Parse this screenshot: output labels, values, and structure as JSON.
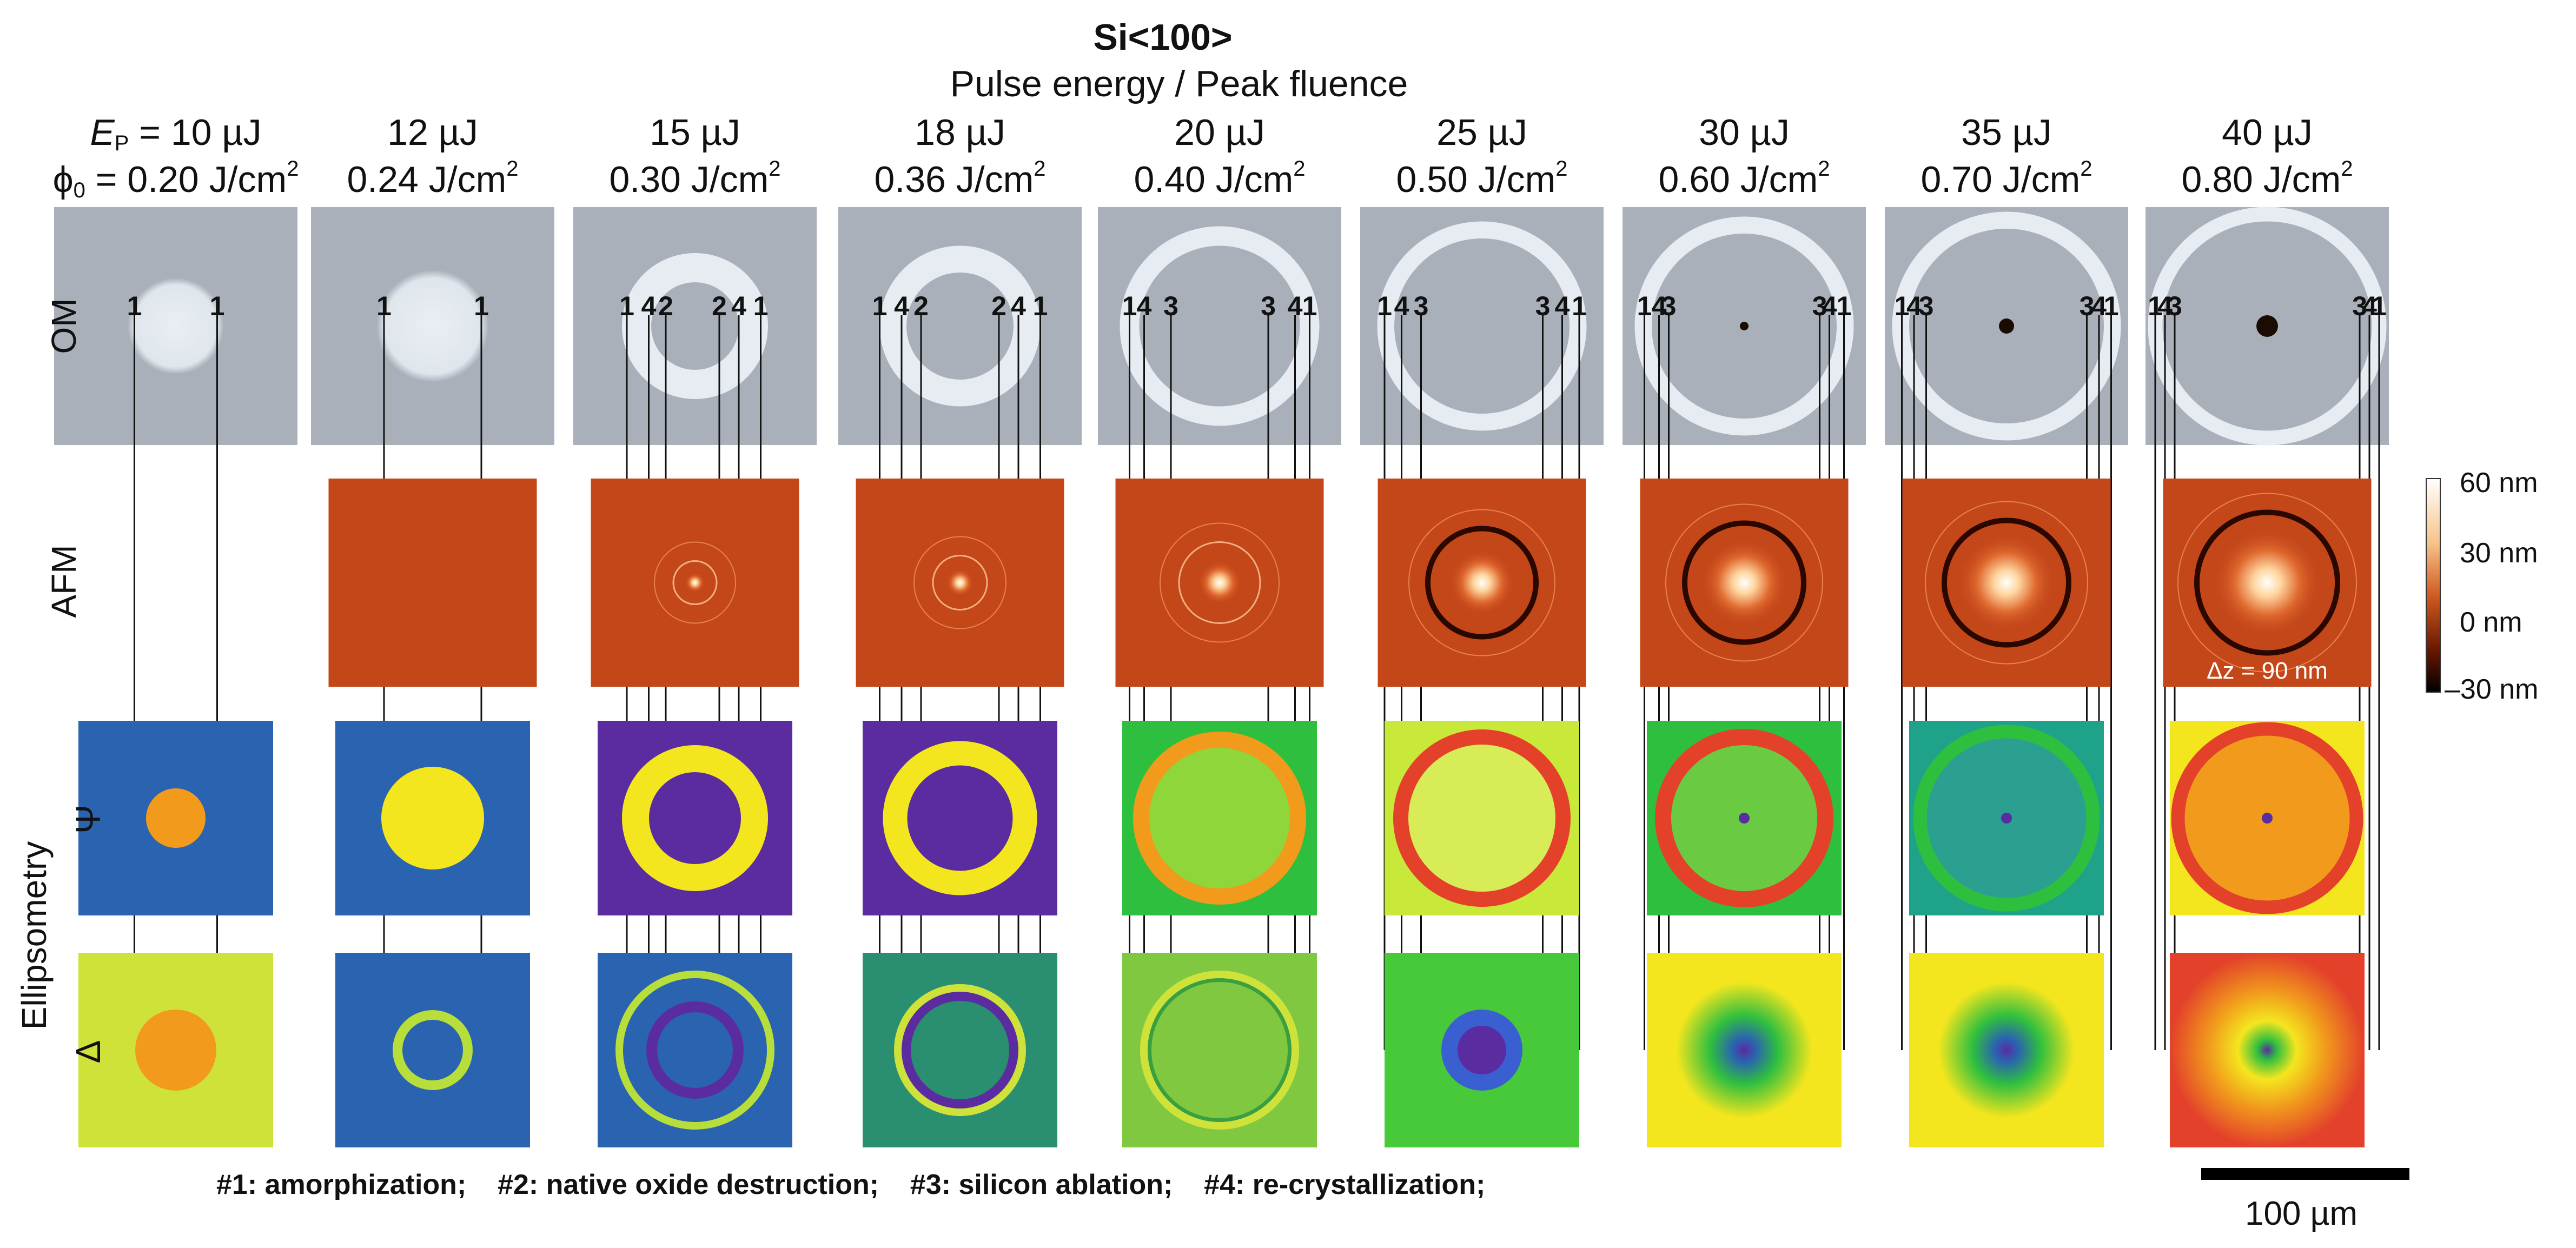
{
  "title": "Si<100>",
  "subtitle": "Pulse energy / Peak fluence",
  "columns": [
    {
      "energy_prefix": "E",
      "energy_sub": "P",
      "energy": "= 10 µJ",
      "fluence_prefix": "ϕ",
      "fluence_sub": "0",
      "fluence": "= 0.20 J/cm",
      "om_labels": [
        "1",
        "1"
      ],
      "has_afm": false
    },
    {
      "energy": "12 µJ",
      "fluence": "0.24 J/cm",
      "om_labels": [
        "1",
        "1"
      ],
      "has_afm": true
    },
    {
      "energy": "15 µJ",
      "fluence": "0.30 J/cm",
      "om_labels": [
        "1",
        "4",
        "2",
        "2",
        "4",
        "1"
      ],
      "has_afm": true
    },
    {
      "energy": "18 µJ",
      "fluence": "0.36 J/cm",
      "om_labels": [
        "1",
        "4",
        "2",
        "2",
        "4",
        "1"
      ],
      "has_afm": true
    },
    {
      "energy": "20 µJ",
      "fluence": "0.40 J/cm",
      "om_labels": [
        "1",
        "4",
        "3",
        "3",
        "4",
        "1"
      ],
      "has_afm": true
    },
    {
      "energy": "25 µJ",
      "fluence": "0.50 J/cm",
      "om_labels": [
        "1",
        "4",
        "3",
        "3",
        "4",
        "1"
      ],
      "has_afm": true
    },
    {
      "energy": "30 µJ",
      "fluence": "0.60 J/cm",
      "om_labels": [
        "1",
        "4",
        "3",
        "3",
        "4",
        "1"
      ],
      "has_afm": true
    },
    {
      "energy": "35 µJ",
      "fluence": "0.70 J/cm",
      "om_labels": [
        "1",
        "4",
        "3",
        "3",
        "4",
        "1"
      ],
      "has_afm": true
    },
    {
      "energy": "40 µJ",
      "fluence": "0.80 J/cm",
      "om_labels": [
        "1",
        "4",
        "3",
        "3",
        "4",
        "1"
      ],
      "has_afm": true
    }
  ],
  "fluence_exponent": "2",
  "row_labels": {
    "om": "OM",
    "afm": "AFM",
    "ellipsometry": "Ellipsometry",
    "psi": "Ψ",
    "delta": "Δ"
  },
  "colorbar": {
    "labels": [
      "60 nm",
      "30 nm",
      "0 nm",
      "–30 nm"
    ],
    "delta_z": "Δz = 90 nm"
  },
  "legend": "#1: amorphization;    #2: native oxide destruction;    #3: silicon ablation;    #4: re-crystallization;",
  "scale_bar": "100 µm",
  "colors": {
    "om_bg": "#aab0ba",
    "om_ring": "#e6ecf2",
    "afm_bg": "#c4471a",
    "afm_bright": "#fff2cf",
    "afm_dark": "#2a0800",
    "viridis_purple": "#5a2ca0",
    "viridis_blue": "#2a63b0",
    "viridis_green": "#2fbf3f",
    "viridis_yellow": "#f4e61e",
    "viridis_orange": "#f19a1c",
    "viridis_red": "#e3412a"
  }
}
